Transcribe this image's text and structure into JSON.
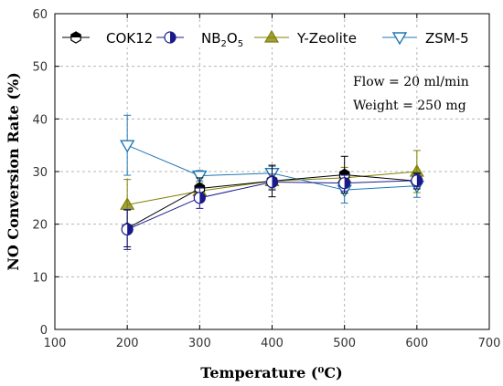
{
  "chart_data": {
    "type": "line",
    "xlabel": "Temperature",
    "xlabel_unit": "(⁰C)",
    "ylabel": "NO Conversion Rate (%)",
    "xlim": [
      100,
      700
    ],
    "ylim": [
      0,
      60
    ],
    "xticks": [
      100,
      200,
      300,
      400,
      500,
      600,
      700
    ],
    "yticks": [
      0,
      10,
      20,
      30,
      40,
      50,
      60
    ],
    "grid": true,
    "legend_position": "top",
    "annotations": [
      "Flow = 20 ml/min",
      "Weight = 250 mg"
    ],
    "series": [
      {
        "name": "COK12",
        "color": "#000000",
        "marker": "hexagon-half",
        "x": [
          200,
          300,
          400,
          500,
          600
        ],
        "y": [
          19.2,
          26.8,
          28.2,
          29.4,
          28.2
        ],
        "err": [
          3.5,
          2.0,
          3.0,
          3.5,
          1.5
        ]
      },
      {
        "name": "NB",
        "name_sub1": "2",
        "name_mid": "O",
        "name_sub2": "5",
        "color": "#1a1a8c",
        "marker": "circle-half",
        "x": [
          200,
          300,
          400,
          500,
          600
        ],
        "y": [
          19.0,
          25.0,
          28.0,
          27.8,
          28.3
        ],
        "err": [
          3.8,
          2.0,
          1.5,
          1.5,
          1.2
        ]
      },
      {
        "name": "Y-Zeolite",
        "color": "#808000",
        "marker": "triangle-up",
        "x": [
          200,
          300,
          400,
          500,
          600
        ],
        "y": [
          23.7,
          26.3,
          28.2,
          28.8,
          30.0
        ],
        "err": [
          4.8,
          1.5,
          1.5,
          2.0,
          4.0
        ]
      },
      {
        "name": "ZSM-5",
        "color": "#1f77b4",
        "marker": "triangle-down",
        "x": [
          200,
          300,
          400,
          500,
          600
        ],
        "y": [
          35.0,
          29.2,
          29.7,
          26.5,
          27.3
        ],
        "err": [
          5.7,
          1.0,
          1.3,
          2.5,
          2.2
        ]
      }
    ]
  }
}
